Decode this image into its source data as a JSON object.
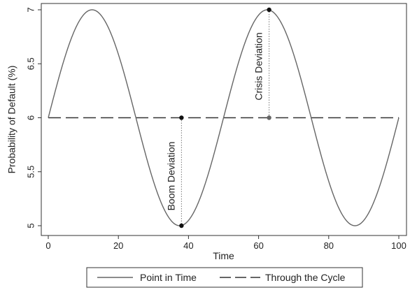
{
  "chart_data": {
    "type": "line",
    "xlabel": "Time",
    "ylabel": "Probability of Default (%)",
    "xlim": [
      0,
      100
    ],
    "ylim": [
      5,
      7
    ],
    "xticks": [
      0,
      20,
      40,
      60,
      80,
      100
    ],
    "yticks": [
      5,
      5.5,
      6,
      6.5,
      7
    ],
    "xtick_labels": [
      "0",
      "20",
      "40",
      "60",
      "80",
      "100"
    ],
    "ytick_labels": [
      "5",
      "5.5",
      "6",
      "6.5",
      "7"
    ],
    "grid": false,
    "series": [
      {
        "name": "Point in Time",
        "style": "solid",
        "color": "#666666",
        "function": "6 + sin(2*pi*x/50)",
        "x_range": [
          0,
          100
        ]
      },
      {
        "name": "Through the Cycle",
        "style": "dashed",
        "color": "#333333",
        "x": [
          0,
          100
        ],
        "y": [
          6,
          6
        ]
      }
    ],
    "annotations": [
      {
        "label": "Boom Deviation",
        "x": 38,
        "y_from": 6,
        "y_to": 5
      },
      {
        "label": "Crisis Deviation",
        "x": 63,
        "y_from": 6,
        "y_to": 7
      }
    ],
    "legend_position": "bottom"
  }
}
